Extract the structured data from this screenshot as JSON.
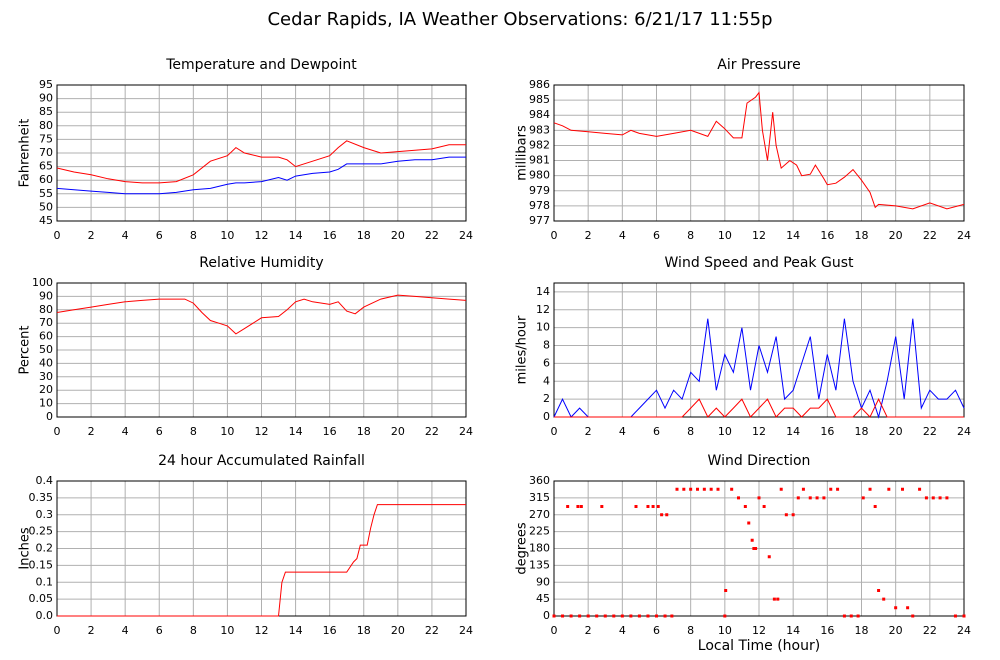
{
  "title": "Cedar Rapids, IA Weather Observations: 6/21/17 11:55p",
  "chart_data": [
    {
      "type": "line",
      "title": "Temperature and Dewpoint",
      "ylabel": "Fahrenheit",
      "x": [
        0,
        1,
        2,
        3,
        4,
        5,
        6,
        7,
        8,
        9,
        10,
        10.5,
        11,
        12,
        13,
        13.5,
        14,
        15,
        16,
        16.5,
        17,
        18,
        19,
        20,
        21,
        22,
        23,
        24
      ],
      "series": [
        {
          "name": "Temperature",
          "color": "#ff0000",
          "values": [
            64.5,
            63,
            62,
            60.5,
            59.5,
            59,
            59,
            59.5,
            62,
            67,
            69,
            72,
            70,
            68.5,
            68.5,
            67.5,
            65,
            67,
            69,
            72,
            74.5,
            72,
            70,
            70.5,
            71,
            71.5,
            73,
            73
          ]
        },
        {
          "name": "Dewpoint",
          "color": "#0000ff",
          "values": [
            57,
            56.5,
            56,
            55.5,
            55,
            55,
            55,
            55.5,
            56.5,
            57,
            58.5,
            59,
            59,
            59.5,
            61,
            60,
            61.5,
            62.5,
            63,
            64,
            66,
            66,
            66,
            67,
            67.5,
            67.5,
            68.5,
            68.5
          ]
        }
      ],
      "xlim": [
        0,
        24
      ],
      "ylim": [
        45,
        95
      ],
      "xticks": [
        0,
        2,
        4,
        6,
        8,
        10,
        12,
        14,
        16,
        18,
        20,
        22,
        24
      ],
      "yticks": [
        45,
        50,
        55,
        60,
        65,
        70,
        75,
        80,
        85,
        90,
        95
      ],
      "grid": true
    },
    {
      "type": "line",
      "title": "Air Pressure",
      "ylabel": "millibars",
      "x": [
        0,
        0.5,
        1,
        2,
        3,
        4,
        4.5,
        5,
        6,
        7,
        8,
        9,
        9.5,
        10,
        10.5,
        11,
        11.3,
        11.8,
        12,
        12.2,
        12.5,
        12.8,
        13,
        13.3,
        13.8,
        14.2,
        14.5,
        15,
        15.3,
        15.8,
        16,
        16.5,
        17,
        17.5,
        18,
        18.5,
        18.8,
        19,
        20,
        21,
        22,
        23,
        24
      ],
      "series": [
        {
          "name": "Pressure",
          "color": "#ff0000",
          "values": [
            983.5,
            983.3,
            983,
            982.9,
            982.8,
            982.7,
            983,
            982.8,
            982.6,
            982.8,
            983,
            982.6,
            983.6,
            983.1,
            982.5,
            982.5,
            984.8,
            985.2,
            985.5,
            983,
            981,
            984.2,
            982,
            980.5,
            981,
            980.7,
            980,
            980.1,
            980.7,
            979.8,
            979.4,
            979.5,
            979.9,
            980.4,
            979.7,
            978.9,
            977.9,
            978.1,
            978,
            977.8,
            978.2,
            977.8,
            978.1
          ]
        }
      ],
      "xlim": [
        0,
        24
      ],
      "ylim": [
        977,
        986
      ],
      "xticks": [
        0,
        2,
        4,
        6,
        8,
        10,
        12,
        14,
        16,
        18,
        20,
        22,
        24
      ],
      "yticks": [
        977,
        978,
        979,
        980,
        981,
        982,
        983,
        984,
        985,
        986
      ],
      "grid": true
    },
    {
      "type": "line",
      "title": "Relative Humidity",
      "ylabel": "Percent",
      "x": [
        0,
        1,
        2,
        3,
        4,
        5,
        6,
        7,
        7.5,
        8,
        8.5,
        9,
        9.5,
        10,
        10.5,
        11,
        11.5,
        12,
        13,
        13.5,
        14,
        14.5,
        15,
        16,
        16.5,
        17,
        17.5,
        18,
        19,
        20,
        21,
        22,
        23,
        24
      ],
      "series": [
        {
          "name": "Relative Humidity",
          "color": "#ff0000",
          "values": [
            78,
            80,
            82,
            84,
            86,
            87,
            88,
            88,
            88,
            85,
            78,
            72,
            70,
            68,
            62,
            66,
            70,
            74,
            75,
            80,
            86,
            88,
            86,
            84,
            86,
            79,
            77,
            82,
            88,
            91,
            90,
            89,
            88,
            87
          ]
        }
      ],
      "xlim": [
        0,
        24
      ],
      "ylim": [
        0,
        100
      ],
      "xticks": [
        0,
        2,
        4,
        6,
        8,
        10,
        12,
        14,
        16,
        18,
        20,
        22,
        24
      ],
      "yticks": [
        0,
        10,
        20,
        30,
        40,
        50,
        60,
        70,
        80,
        90,
        100
      ],
      "grid": true
    },
    {
      "type": "line",
      "title": "Wind Speed and Peak Gust",
      "ylabel": "miles/hour",
      "x": [
        0,
        0.5,
        1,
        1.5,
        2,
        2.5,
        3,
        3.5,
        4,
        4.5,
        5,
        5.5,
        6,
        6.5,
        7,
        7.5,
        8,
        8.5,
        9,
        9.5,
        10,
        10.5,
        11,
        11.5,
        12,
        12.5,
        13,
        13.5,
        14,
        14.5,
        15,
        15.5,
        16,
        16.5,
        17,
        17.5,
        18,
        18.5,
        19,
        19.5,
        20,
        20.5,
        21,
        21.5,
        22,
        22.5,
        23,
        23.5,
        24
      ],
      "series": [
        {
          "name": "Wind Speed",
          "color": "#0000ff",
          "values": [
            0,
            2,
            0,
            1,
            0,
            0,
            0,
            0,
            0,
            0,
            1,
            2,
            3,
            1,
            3,
            2,
            5,
            4,
            11,
            3,
            7,
            5,
            10,
            3,
            8,
            5,
            9,
            2,
            3,
            6,
            9,
            2,
            7,
            3,
            11,
            4,
            1,
            3,
            0,
            4,
            9,
            2,
            11,
            1,
            3,
            2,
            2,
            3,
            1
          ]
        },
        {
          "name": "Peak Gust",
          "color": "#ff0000",
          "values": [
            0,
            0,
            0,
            0,
            0,
            0,
            0,
            0,
            0,
            0,
            0,
            0,
            0,
            0,
            0,
            0,
            1,
            2,
            0,
            1,
            0,
            1,
            2,
            0,
            1,
            2,
            0,
            1,
            1,
            0,
            1,
            1,
            2,
            0,
            0,
            0,
            1,
            0,
            2,
            0,
            0,
            0,
            0,
            0,
            0,
            0,
            0,
            0,
            0
          ]
        }
      ],
      "xlim": [
        0,
        24
      ],
      "ylim": [
        0,
        15
      ],
      "xticks": [
        0,
        2,
        4,
        6,
        8,
        10,
        12,
        14,
        16,
        18,
        20,
        22,
        24
      ],
      "yticks": [
        0,
        2,
        4,
        6,
        8,
        10,
        12,
        14
      ],
      "grid": true
    },
    {
      "type": "line",
      "title": "24 hour Accumulated Rainfall",
      "ylabel": "Inches",
      "x": [
        0,
        13,
        13.2,
        13.4,
        17,
        17.4,
        17.6,
        17.8,
        18.2,
        18.4,
        18.6,
        18.8,
        24
      ],
      "series": [
        {
          "name": "Rainfall",
          "color": "#ff0000",
          "values": [
            0,
            0,
            0.1,
            0.13,
            0.13,
            0.16,
            0.17,
            0.21,
            0.21,
            0.26,
            0.3,
            0.33,
            0.33
          ]
        }
      ],
      "xlim": [
        0,
        24
      ],
      "ylim": [
        0,
        0.4
      ],
      "xticks": [
        0,
        2,
        4,
        6,
        8,
        10,
        12,
        14,
        16,
        18,
        20,
        22,
        24
      ],
      "yticks": [
        {
          "value": 0,
          "label": "0.0"
        },
        0.05,
        0.1,
        0.15,
        0.2,
        0.25,
        0.3,
        0.35,
        0.4
      ],
      "grid": true
    },
    {
      "type": "scatter",
      "title": "Wind Direction",
      "ylabel": "degrees",
      "xlabel": "Local Time (hour)",
      "x": [
        0,
        0.5,
        1,
        1.5,
        2,
        2.5,
        3,
        3.5,
        4,
        4.5,
        5,
        5.5,
        6,
        6.5,
        0.8,
        1.4,
        1.6,
        2.8,
        4.8,
        5.5,
        5.8,
        6.1,
        6.3,
        6.6,
        6.9,
        7.2,
        7.6,
        8,
        8.4,
        8.8,
        9.2,
        9.6,
        10,
        10.05,
        10.4,
        10.8,
        11.2,
        11.4,
        11.6,
        11.7,
        11.8,
        12,
        12.3,
        12.6,
        12.9,
        13.1,
        13.3,
        13.6,
        14,
        14.3,
        14.6,
        15,
        15.4,
        15.8,
        16.2,
        16.6,
        17,
        17.4,
        17.8,
        18.1,
        18.5,
        18.8,
        19,
        19.3,
        19.6,
        20,
        20.4,
        20.7,
        21,
        21.4,
        21.8,
        22.2,
        22.6,
        23,
        23.5,
        24
      ],
      "series": [
        {
          "name": "Wind Direction",
          "color": "#ff0000",
          "values": [
            0,
            0,
            0,
            0,
            0,
            0,
            0,
            0,
            0,
            0,
            0,
            0,
            0,
            0,
            292,
            292,
            292,
            292,
            292,
            292,
            292,
            292,
            270,
            270,
            0,
            338,
            338,
            338,
            338,
            338,
            338,
            338,
            0,
            68,
            338,
            315,
            292,
            248,
            202,
            180,
            180,
            315,
            292,
            158,
            45,
            45,
            338,
            270,
            270,
            315,
            338,
            315,
            315,
            315,
            338,
            338,
            0,
            0,
            0,
            315,
            338,
            292,
            68,
            45,
            338,
            22,
            338,
            22,
            0,
            338,
            315,
            315,
            315,
            315,
            0,
            0
          ]
        }
      ],
      "xlim": [
        0,
        24
      ],
      "ylim": [
        0,
        360
      ],
      "xticks": [
        0,
        2,
        4,
        6,
        8,
        10,
        12,
        14,
        16,
        18,
        20,
        22,
        24
      ],
      "yticks": [
        0,
        45,
        90,
        135,
        180,
        225,
        270,
        315,
        360
      ],
      "grid": true
    }
  ]
}
